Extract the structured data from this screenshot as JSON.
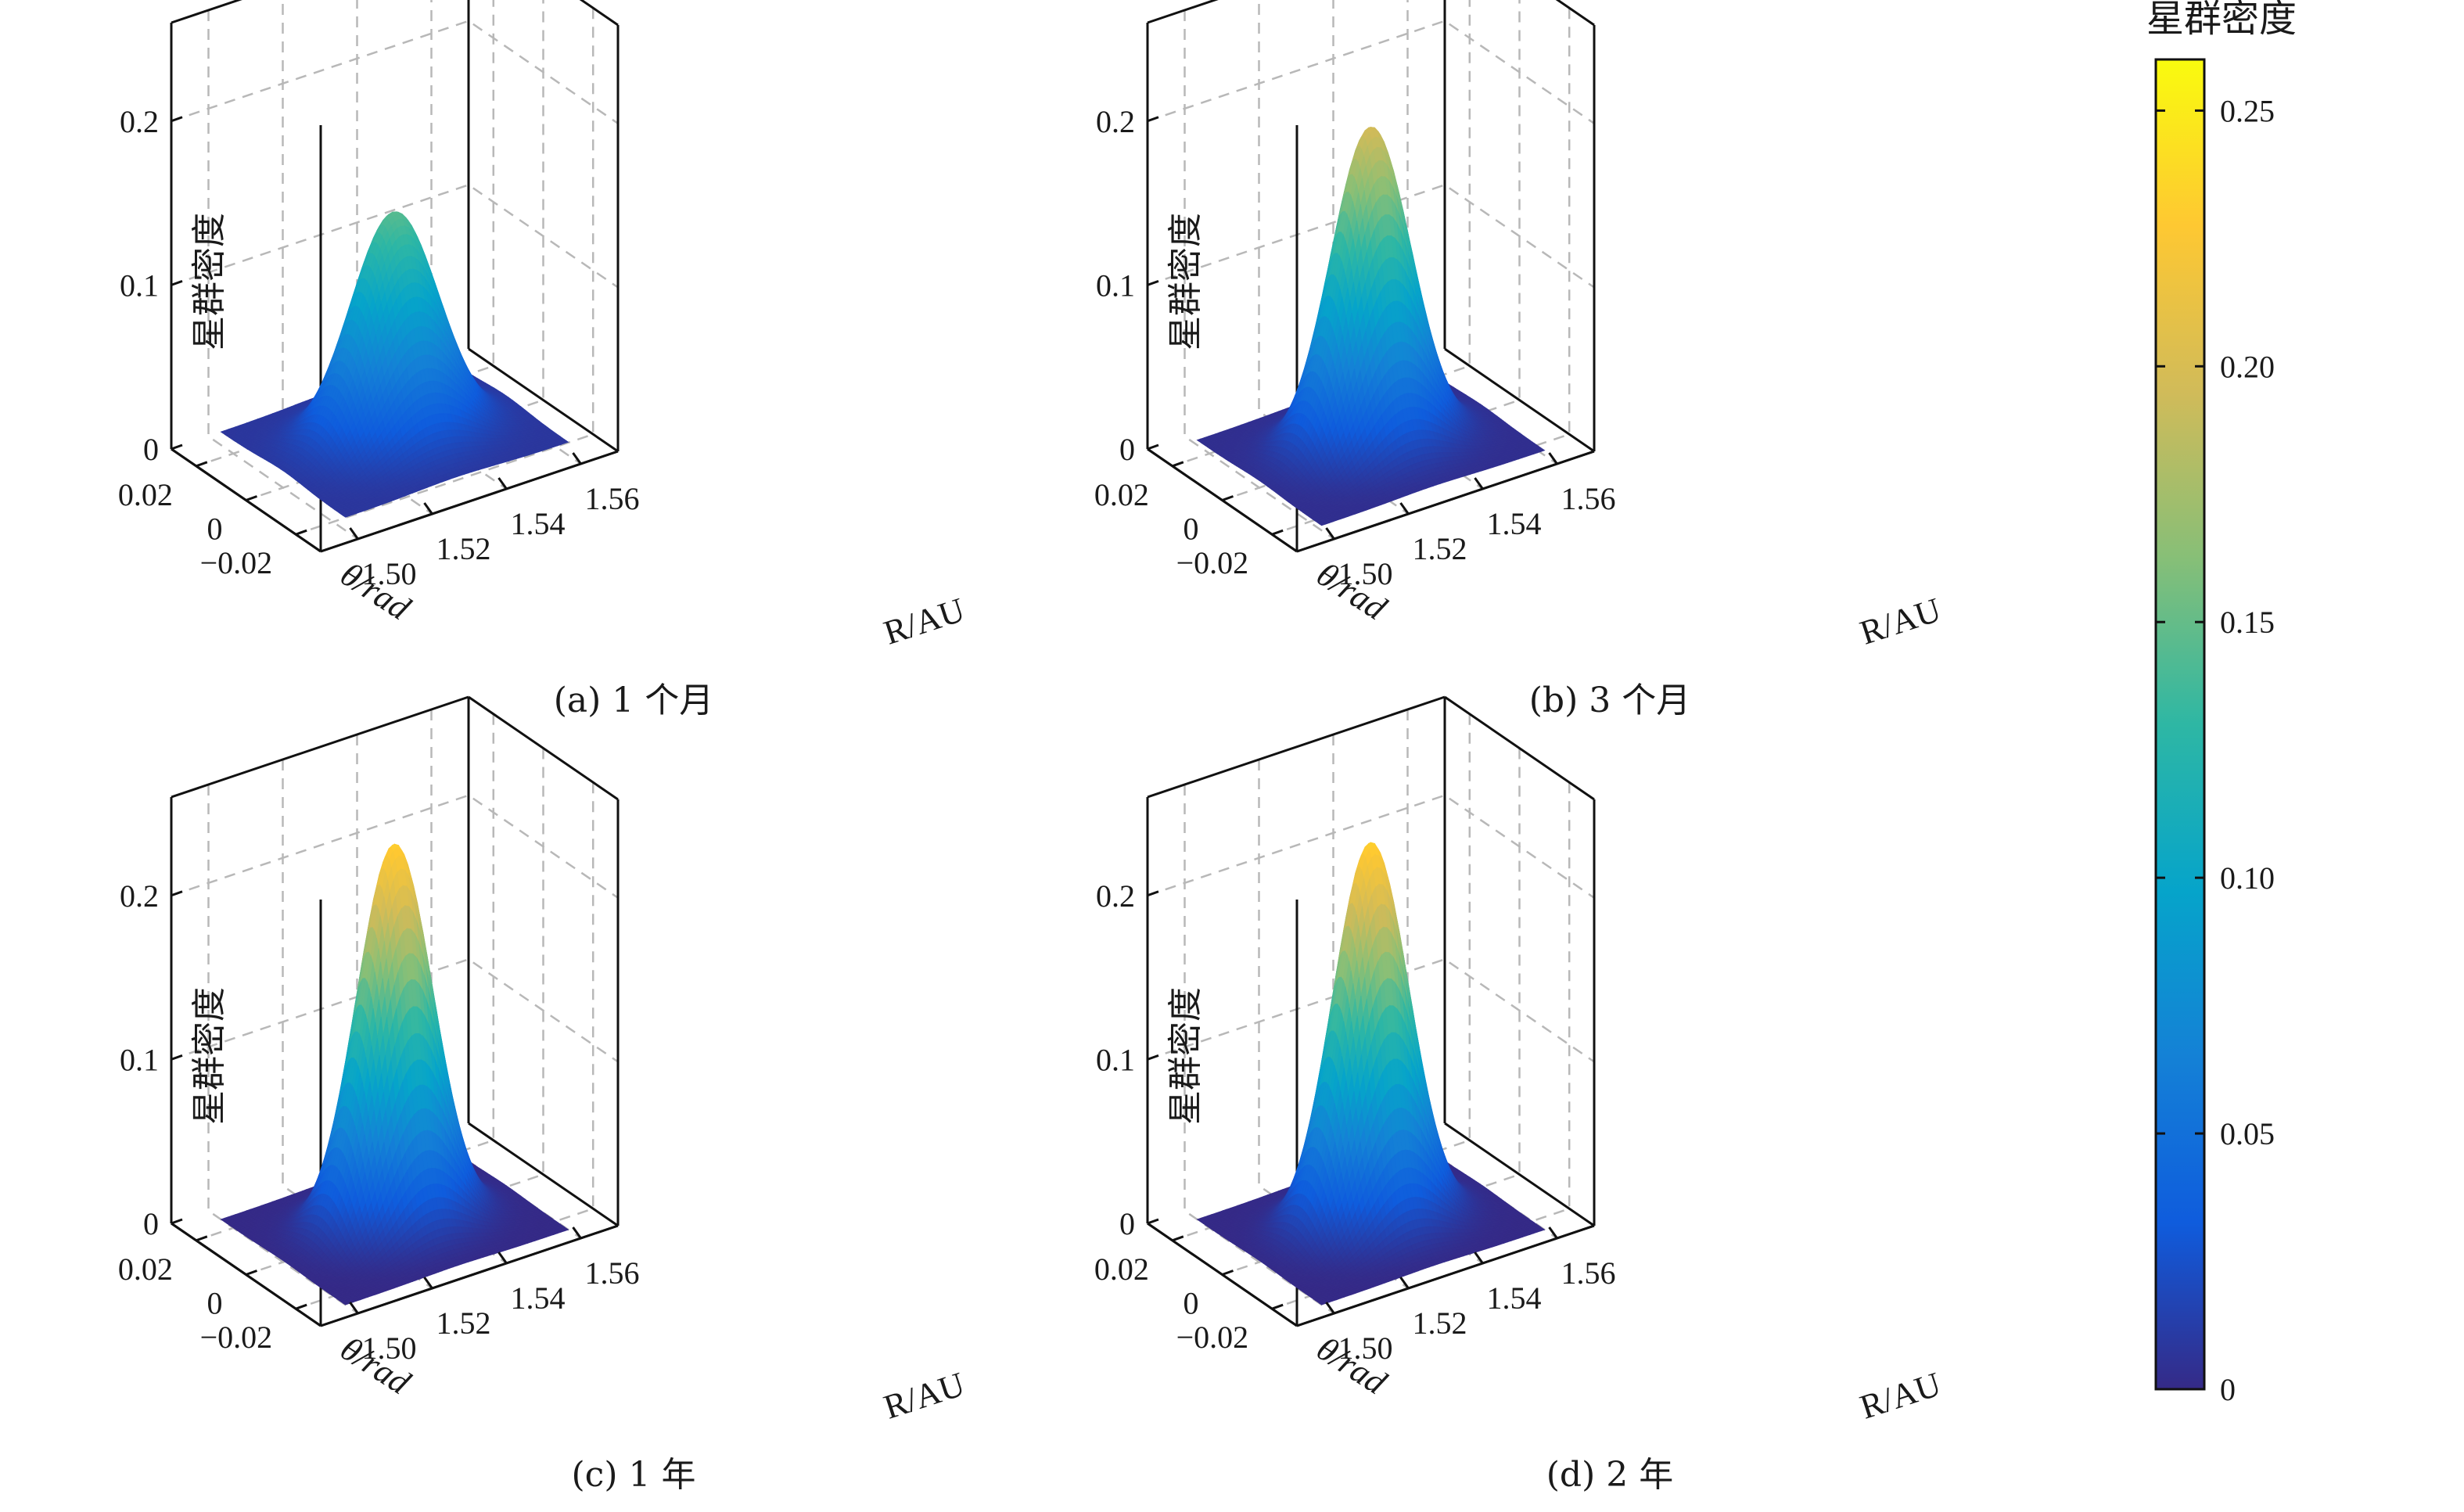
{
  "colorbar": {
    "title": "星群密度",
    "min": 0,
    "max": 0.26,
    "ticks": [
      "0",
      "0.05",
      "0.10",
      "0.15",
      "0.20",
      "0.25"
    ],
    "tick_values": [
      0,
      0.05,
      0.1,
      0.15,
      0.2,
      0.25
    ],
    "colormap": "parula",
    "colormap_stops": [
      "#352a87",
      "#0f5cdd",
      "#1481d6",
      "#06a4ca",
      "#2eb7a4",
      "#87bf77",
      "#d1bb59",
      "#fec832",
      "#f9fb0e"
    ]
  },
  "chart_data": [
    {
      "type": "surface",
      "caption": "(a) 1 个月",
      "xlabel": "R/AU",
      "ylabel": "θ/rad",
      "zlabel": "星群密度",
      "x_ticks": [
        "1.50",
        "1.52",
        "1.54",
        "1.56"
      ],
      "y_ticks": [
        "0.02",
        "0",
        "−0.02"
      ],
      "z_ticks": [
        "0",
        "0.1",
        "0.2"
      ],
      "xlim": [
        1.49,
        1.57
      ],
      "ylim": [
        -0.03,
        0.03
      ],
      "zlim": [
        0,
        0.26
      ],
      "peak_value": 0.145,
      "peak_R": 1.53,
      "peak_theta": 0.0,
      "sigma_R": 0.0105,
      "sigma_theta": 0.0085,
      "baseline": 0.008,
      "grid": true
    },
    {
      "type": "surface",
      "caption": "(b) 3 个月",
      "xlabel": "R/AU",
      "ylabel": "θ/rad",
      "zlabel": "星群密度",
      "x_ticks": [
        "1.50",
        "1.52",
        "1.54",
        "1.56"
      ],
      "y_ticks": [
        "0.02",
        "0",
        "−0.02"
      ],
      "z_ticks": [
        "0",
        "0.1",
        "0.2"
      ],
      "xlim": [
        1.49,
        1.57
      ],
      "ylim": [
        -0.03,
        0.03
      ],
      "zlim": [
        0,
        0.26
      ],
      "peak_value": 0.197,
      "peak_R": 1.53,
      "peak_theta": 0.0,
      "sigma_R": 0.0095,
      "sigma_theta": 0.0078,
      "baseline": 0.003,
      "grid": true
    },
    {
      "type": "surface",
      "caption": "(c) 1 年",
      "xlabel": "R/AU",
      "ylabel": "θ/rad",
      "zlabel": "星群密度",
      "x_ticks": [
        "1.50",
        "1.52",
        "1.54",
        "1.56"
      ],
      "y_ticks": [
        "0.02",
        "0",
        "−0.02"
      ],
      "z_ticks": [
        "0",
        "0.1",
        "0.2"
      ],
      "xlim": [
        1.49,
        1.57
      ],
      "ylim": [
        -0.03,
        0.03
      ],
      "zlim": [
        0,
        0.26
      ],
      "peak_value": 0.232,
      "peak_R": 1.53,
      "peak_theta": 0.0,
      "sigma_R": 0.009,
      "sigma_theta": 0.0075,
      "baseline": 0.0,
      "grid": true
    },
    {
      "type": "surface",
      "caption": "(d) 2 年",
      "xlabel": "R/AU",
      "ylabel": "θ/rad",
      "zlabel": "星群密度",
      "x_ticks": [
        "1.50",
        "1.52",
        "1.54",
        "1.56"
      ],
      "y_ticks": [
        "0.02",
        "0",
        "−0.02"
      ],
      "z_ticks": [
        "0",
        "0.1",
        "0.2"
      ],
      "xlim": [
        1.49,
        1.57
      ],
      "ylim": [
        -0.03,
        0.03
      ],
      "zlim": [
        0,
        0.26
      ],
      "peak_value": 0.233,
      "peak_R": 1.53,
      "peak_theta": 0.0,
      "sigma_R": 0.009,
      "sigma_theta": 0.0075,
      "baseline": 0.0,
      "grid": true
    }
  ]
}
